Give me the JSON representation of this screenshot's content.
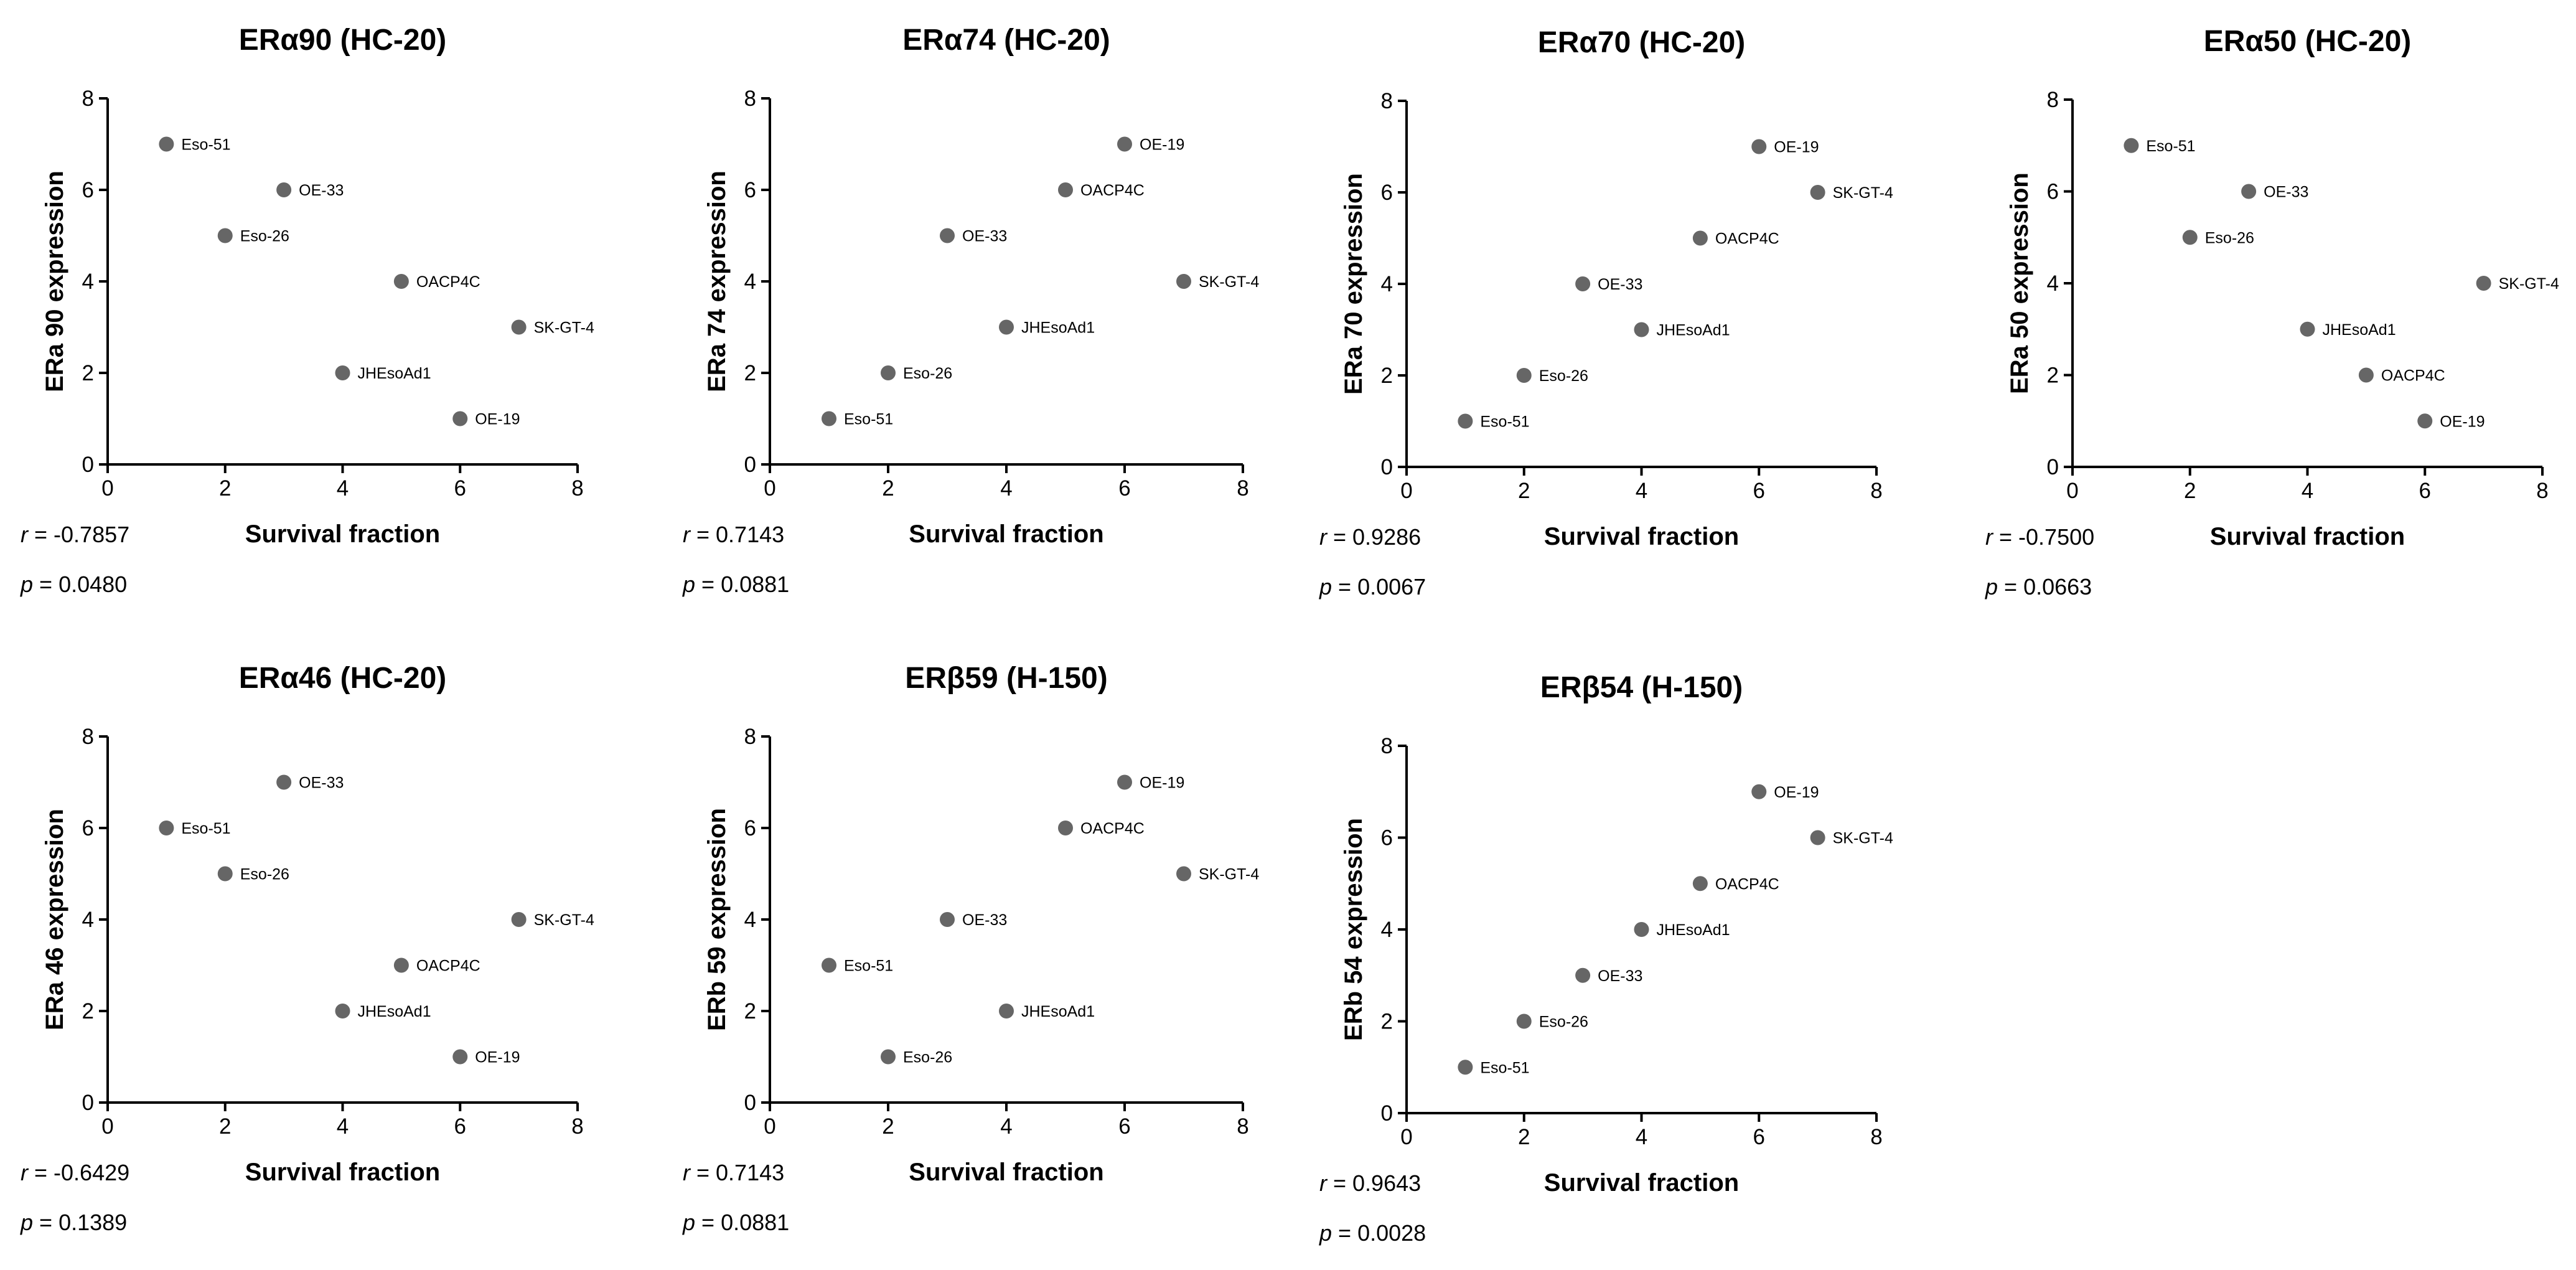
{
  "colors": {
    "point": "#666666",
    "axis": "#000000",
    "background": "#ffffff"
  },
  "stat_keys": {
    "r": "r",
    "p": "p"
  },
  "chart_data": [
    {
      "type": "scatter",
      "title": "ERα90 (HC-20)",
      "xlabel": "Survival fraction",
      "ylabel": "ERa 90 expression",
      "xlim": [
        0,
        8
      ],
      "ylim": [
        0,
        8
      ],
      "xticks": [
        0,
        2,
        4,
        6,
        8
      ],
      "yticks": [
        0,
        2,
        4,
        6,
        8
      ],
      "r": "-0.7857",
      "p": "0.0480",
      "points": [
        {
          "label": "Eso-51",
          "x": 1,
          "y": 7
        },
        {
          "label": "Eso-26",
          "x": 2,
          "y": 5
        },
        {
          "label": "OE-33",
          "x": 3,
          "y": 6
        },
        {
          "label": "JHEsoAd1",
          "x": 4,
          "y": 2
        },
        {
          "label": "OACP4C",
          "x": 5,
          "y": 4
        },
        {
          "label": "OE-19",
          "x": 6,
          "y": 1
        },
        {
          "label": "SK-GT-4",
          "x": 7,
          "y": 3
        }
      ]
    },
    {
      "type": "scatter",
      "title": "ERα74 (HC-20)",
      "xlabel": "Survival fraction",
      "ylabel": "ERa 74 expression",
      "xlim": [
        0,
        8
      ],
      "ylim": [
        0,
        8
      ],
      "xticks": [
        0,
        2,
        4,
        6,
        8
      ],
      "yticks": [
        0,
        2,
        4,
        6,
        8
      ],
      "r": "0.7143",
      "p": "0.0881",
      "points": [
        {
          "label": "Eso-51",
          "x": 1,
          "y": 1
        },
        {
          "label": "Eso-26",
          "x": 2,
          "y": 2
        },
        {
          "label": "OE-33",
          "x": 3,
          "y": 5
        },
        {
          "label": "JHEsoAd1",
          "x": 4,
          "y": 3
        },
        {
          "label": "OACP4C",
          "x": 5,
          "y": 6
        },
        {
          "label": "OE-19",
          "x": 6,
          "y": 7
        },
        {
          "label": "SK-GT-4",
          "x": 7,
          "y": 4
        }
      ]
    },
    {
      "type": "scatter",
      "title": "ERα70 (HC-20)",
      "xlabel": "Survival fraction",
      "ylabel": "ERa 70 expression",
      "xlim": [
        0,
        8
      ],
      "ylim": [
        0,
        8
      ],
      "xticks": [
        0,
        2,
        4,
        6,
        8
      ],
      "yticks": [
        0,
        2,
        4,
        6,
        8
      ],
      "r": "0.9286",
      "p": "0.0067",
      "points": [
        {
          "label": "Eso-51",
          "x": 1,
          "y": 1
        },
        {
          "label": "Eso-26",
          "x": 2,
          "y": 2
        },
        {
          "label": "OE-33",
          "x": 3,
          "y": 4
        },
        {
          "label": "JHEsoAd1",
          "x": 4,
          "y": 3
        },
        {
          "label": "OACP4C",
          "x": 5,
          "y": 5
        },
        {
          "label": "OE-19",
          "x": 6,
          "y": 7
        },
        {
          "label": "SK-GT-4",
          "x": 7,
          "y": 6
        }
      ]
    },
    {
      "type": "scatter",
      "title": "ERα50 (HC-20)",
      "xlabel": "Survival fraction",
      "ylabel": "ERa 50 expression",
      "xlim": [
        0,
        8
      ],
      "ylim": [
        0,
        8
      ],
      "xticks": [
        0,
        2,
        4,
        6,
        8
      ],
      "yticks": [
        0,
        2,
        4,
        6,
        8
      ],
      "r": "-0.7500",
      "p": "0.0663",
      "points": [
        {
          "label": "Eso-51",
          "x": 1,
          "y": 7
        },
        {
          "label": "Eso-26",
          "x": 2,
          "y": 5
        },
        {
          "label": "OE-33",
          "x": 3,
          "y": 6
        },
        {
          "label": "JHEsoAd1",
          "x": 4,
          "y": 3
        },
        {
          "label": "OACP4C",
          "x": 5,
          "y": 2
        },
        {
          "label": "OE-19",
          "x": 6,
          "y": 1
        },
        {
          "label": "SK-GT-4",
          "x": 7,
          "y": 4
        }
      ]
    },
    {
      "type": "scatter",
      "title": "ERα46 (HC-20)",
      "xlabel": "Survival fraction",
      "ylabel": "ERa 46 expression",
      "xlim": [
        0,
        8
      ],
      "ylim": [
        0,
        8
      ],
      "xticks": [
        0,
        2,
        4,
        6,
        8
      ],
      "yticks": [
        0,
        2,
        4,
        6,
        8
      ],
      "r": "-0.6429",
      "p": "0.1389",
      "points": [
        {
          "label": "Eso-51",
          "x": 1,
          "y": 6
        },
        {
          "label": "Eso-26",
          "x": 2,
          "y": 5
        },
        {
          "label": "OE-33",
          "x": 3,
          "y": 7
        },
        {
          "label": "JHEsoAd1",
          "x": 4,
          "y": 2
        },
        {
          "label": "OACP4C",
          "x": 5,
          "y": 3
        },
        {
          "label": "OE-19",
          "x": 6,
          "y": 1
        },
        {
          "label": "SK-GT-4",
          "x": 7,
          "y": 4
        }
      ]
    },
    {
      "type": "scatter",
      "title": "ERβ59 (H-150)",
      "xlabel": "Survival fraction",
      "ylabel": "ERb 59 expression",
      "xlim": [
        0,
        8
      ],
      "ylim": [
        0,
        8
      ],
      "xticks": [
        0,
        2,
        4,
        6,
        8
      ],
      "yticks": [
        0,
        2,
        4,
        6,
        8
      ],
      "r": "0.7143",
      "p": "0.0881",
      "points": [
        {
          "label": "Eso-51",
          "x": 1,
          "y": 3
        },
        {
          "label": "Eso-26",
          "x": 2,
          "y": 1
        },
        {
          "label": "OE-33",
          "x": 3,
          "y": 4
        },
        {
          "label": "JHEsoAd1",
          "x": 4,
          "y": 2
        },
        {
          "label": "OACP4C",
          "x": 5,
          "y": 6
        },
        {
          "label": "OE-19",
          "x": 6,
          "y": 7
        },
        {
          "label": "SK-GT-4",
          "x": 7,
          "y": 5
        }
      ]
    },
    {
      "type": "scatter",
      "title": "ERβ54 (H-150)",
      "xlabel": "Survival fraction",
      "ylabel": "ERb 54 expression",
      "xlim": [
        0,
        8
      ],
      "ylim": [
        0,
        8
      ],
      "xticks": [
        0,
        2,
        4,
        6,
        8
      ],
      "yticks": [
        0,
        2,
        4,
        6,
        8
      ],
      "r": "0.9643",
      "p": "0.0028",
      "points": [
        {
          "label": "Eso-51",
          "x": 1,
          "y": 1
        },
        {
          "label": "Eso-26",
          "x": 2,
          "y": 2
        },
        {
          "label": "OE-33",
          "x": 3,
          "y": 3
        },
        {
          "label": "JHEsoAd1",
          "x": 4,
          "y": 4
        },
        {
          "label": "OACP4C",
          "x": 5,
          "y": 5
        },
        {
          "label": "OE-19",
          "x": 6,
          "y": 7
        },
        {
          "label": "SK-GT-4",
          "x": 7,
          "y": 6
        }
      ]
    }
  ]
}
